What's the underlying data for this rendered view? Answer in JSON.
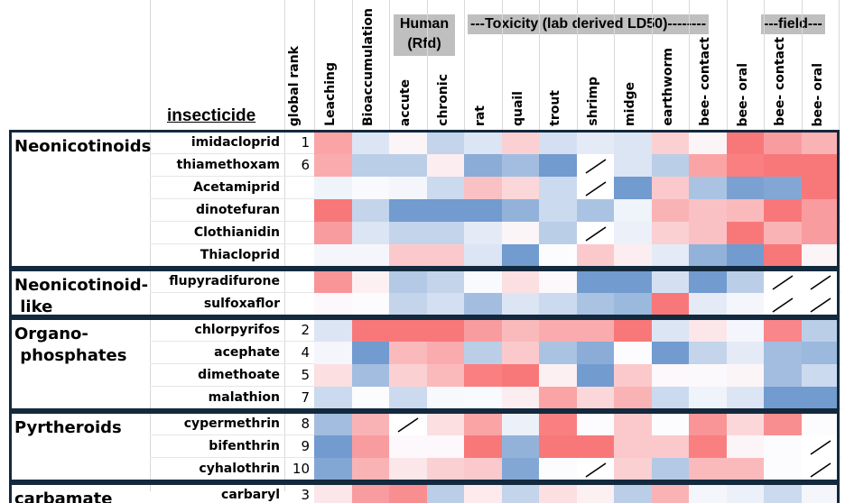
{
  "chart_data": {
    "type": "heatmap",
    "title_column": "insecticide",
    "rank_header": "global rank",
    "columns": [
      "Leaching",
      "Bioaccumulation",
      "accute",
      "chronic",
      "rat",
      "quail",
      "trout",
      "shrimp",
      "midge",
      "earthworm",
      "bee- contact",
      "bee- oral",
      "bee- contact",
      "bee- oral"
    ],
    "column_groups": [
      {
        "label": "Human\n(Rfd)",
        "line1": "Human",
        "line2": "(Rfd)"
      },
      {
        "label": "---Toxicity (lab derived LD50)--------"
      },
      {
        "label": "---field---"
      }
    ],
    "scale": {
      "min": -1,
      "max": 1,
      "low_color": "#5A8AC6",
      "mid_color": "#FCFCFF",
      "high_color": "#F8696B",
      "note_null": "slash = no data"
    },
    "groups": [
      {
        "label": "Neonicotinoids",
        "lines": [
          "Neonicotinoids"
        ],
        "rows": [
          {
            "name": "imidacloprid",
            "rank": "1",
            "values": [
              0.6,
              -0.2,
              0.05,
              -0.35,
              -0.2,
              0.3,
              -0.25,
              -0.15,
              -0.2,
              0.3,
              0.05,
              0.9,
              0.65,
              0.5
            ]
          },
          {
            "name": "thiamethoxam",
            "rank": "6",
            "values": [
              0.55,
              -0.4,
              -0.4,
              0.1,
              -0.7,
              -0.55,
              -0.85,
              null,
              -0.2,
              -0.4,
              0.6,
              0.85,
              0.9,
              0.9
            ]
          },
          {
            "name": "Acetamiprid",
            "rank": "",
            "values": [
              -0.08,
              -0.02,
              -0.05,
              -0.3,
              0.4,
              0.25,
              -0.3,
              null,
              -0.85,
              0.35,
              -0.5,
              -0.8,
              -0.75,
              0.9
            ]
          },
          {
            "name": "dinotefuran",
            "rank": "",
            "values": [
              0.9,
              -0.35,
              -0.85,
              -0.85,
              -0.85,
              -0.65,
              -0.3,
              -0.5,
              -0.08,
              0.5,
              0.4,
              0.45,
              0.9,
              0.65
            ]
          },
          {
            "name": "Clothianidin",
            "rank": "",
            "values": [
              0.65,
              -0.2,
              -0.35,
              -0.35,
              -0.15,
              0.05,
              -0.4,
              null,
              -0.1,
              0.3,
              0.4,
              0.9,
              0.5,
              0.65
            ]
          },
          {
            "name": "Thiacloprid",
            "rank": "",
            "values": [
              -0.05,
              -0.05,
              0.35,
              0.35,
              -0.2,
              -0.85,
              0,
              0.35,
              0.1,
              -0.15,
              -0.65,
              -0.85,
              0.9,
              0.05
            ]
          }
        ]
      },
      {
        "label": "Neonicotinoid-like",
        "lines": [
          "Neonicotinoid-",
          " like"
        ],
        "rows": [
          {
            "name": "flupyradifurone",
            "rank": "",
            "values": [
              0.7,
              0.08,
              -0.45,
              -0.35,
              -0.02,
              0.2,
              0.03,
              -0.85,
              -0.85,
              -0.25,
              -0.85,
              -0.4,
              null,
              null
            ]
          },
          {
            "name": "sulfoxaflor",
            "rank": "",
            "values": [
              0.03,
              0,
              -0.35,
              -0.25,
              -0.55,
              -0.2,
              -0.3,
              -0.5,
              -0.6,
              0.9,
              -0.15,
              -0.05,
              null,
              null
            ]
          }
        ]
      },
      {
        "label": "Organo-phosphates",
        "lines": [
          "Organo-",
          " phosphates"
        ],
        "rows": [
          {
            "name": "chlorpyrifos",
            "rank": "2",
            "values": [
              -0.2,
              0.9,
              0.9,
              0.9,
              0.65,
              0.45,
              0.55,
              0.55,
              0.9,
              -0.2,
              0.15,
              -0.05,
              0.8,
              -0.4
            ]
          },
          {
            "name": "acephate",
            "rank": "4",
            "values": [
              -0.05,
              -0.85,
              0.45,
              0.55,
              -0.4,
              0.35,
              -0.5,
              -0.7,
              0,
              -0.85,
              -0.35,
              -0.15,
              -0.55,
              -0.6
            ]
          },
          {
            "name": "dimethoate",
            "rank": "5",
            "values": [
              0.2,
              -0.55,
              0.3,
              0.45,
              0.85,
              0.9,
              0.08,
              -0.85,
              0.35,
              0.03,
              0.02,
              0.05,
              -0.55,
              -0.3
            ]
          },
          {
            "name": "malathion",
            "rank": "7",
            "values": [
              -0.3,
              0,
              -0.3,
              -0.03,
              -0.02,
              0.1,
              0.6,
              0.25,
              0.5,
              -0.3,
              -0.08,
              -0.2,
              -0.85,
              -0.85
            ]
          }
        ]
      },
      {
        "label": "Pyrtheroids",
        "lines": [
          "Pyrtheroids"
        ],
        "rows": [
          {
            "name": "cypermethrin",
            "rank": "8",
            "values": [
              -0.55,
              0.5,
              null,
              0.2,
              0.6,
              -0.1,
              0.85,
              0,
              0.35,
              0,
              0.7,
              0.25,
              0.75,
              0
            ]
          },
          {
            "name": "bifenthrin",
            "rank": "9",
            "values": [
              -0.85,
              0.65,
              0.03,
              0.03,
              0.9,
              -0.65,
              0.9,
              0.9,
              0.35,
              0.35,
              0.85,
              0.05,
              0,
              null
            ]
          },
          {
            "name": "cyhalothrin",
            "rank": "10",
            "values": [
              -0.75,
              0.5,
              0.15,
              0.3,
              0.35,
              -0.75,
              0,
              null,
              0.3,
              -0.45,
              0.45,
              0.45,
              0,
              null
            ]
          }
        ]
      },
      {
        "label": "carbamate",
        "lines": [
          "carbamate"
        ],
        "rows": [
          {
            "name": "carbaryl",
            "rank": "3",
            "values": [
              0.15,
              0.65,
              0.75,
              -0.4,
              0.12,
              -0.35,
              0.2,
              0.08,
              -0.4,
              0.5,
              -0.05,
              -0.1,
              -0.3,
              -0.05
            ]
          }
        ]
      }
    ]
  }
}
